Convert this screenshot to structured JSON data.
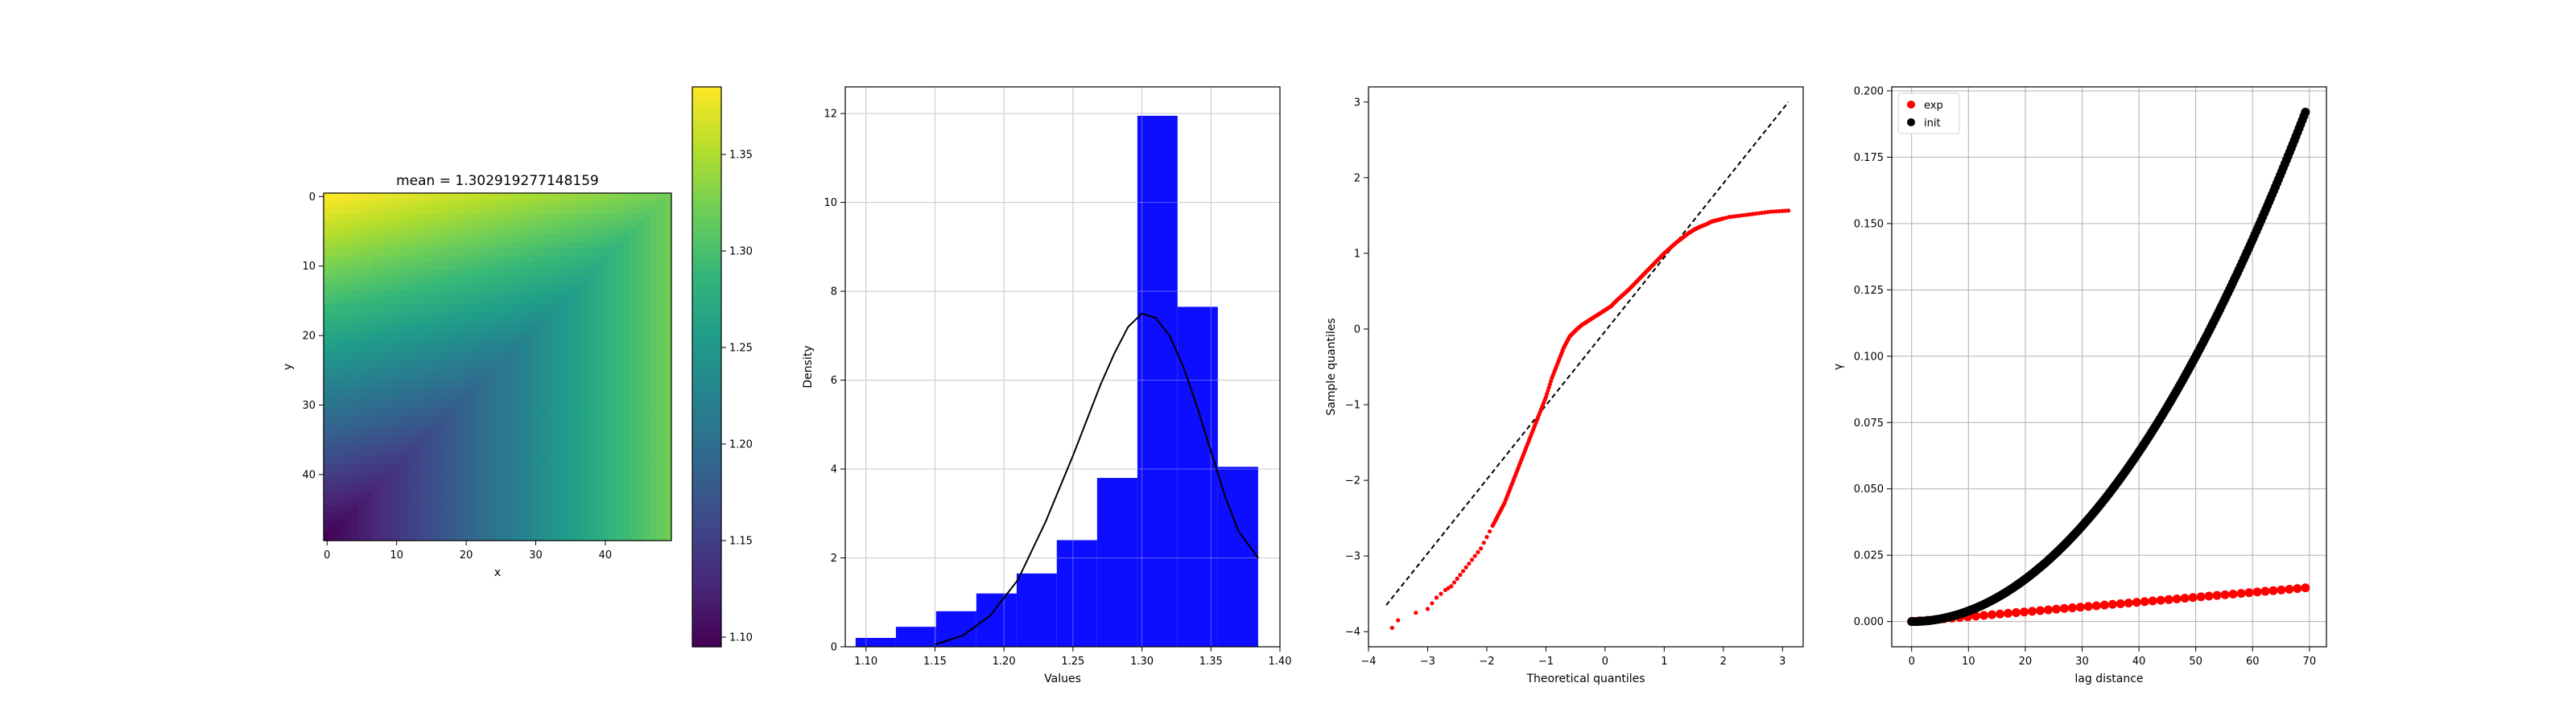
{
  "chart_data": [
    {
      "type": "heatmap",
      "title": "mean = 1.302919277148159",
      "xlabel": "x",
      "ylabel": "y",
      "grid_size": 50,
      "x_ticks": [
        0,
        10,
        20,
        30,
        40
      ],
      "y_ticks": [
        0,
        10,
        20,
        30,
        40
      ],
      "colormap": "viridis",
      "colorbar": {
        "range": [
          1.095,
          1.385
        ],
        "ticks": [
          1.1,
          1.15,
          1.2,
          1.25,
          1.3,
          1.35
        ],
        "tick_labels": [
          "1.10",
          "1.15",
          "1.20",
          "1.25",
          "1.30",
          "1.35"
        ]
      },
      "value_at_origin": 1.385,
      "value_at_bottom_left": 1.095,
      "value_at_bottom_right": 1.32,
      "value_at_top_right": 1.32
    },
    {
      "type": "bar",
      "subtype": "histogram",
      "xlabel": "Values",
      "ylabel": "Density",
      "bar_color": "#0000ff",
      "bin_edges": [
        1.0925,
        1.1217,
        1.1508,
        1.18,
        1.2092,
        1.2383,
        1.2675,
        1.2967,
        1.3258,
        1.355,
        1.3842
      ],
      "values": [
        0.2,
        0.45,
        0.8,
        1.2,
        1.65,
        2.4,
        3.8,
        11.95,
        7.65,
        4.05
      ],
      "curve": {
        "type": "line",
        "description": "normal density fit",
        "x": [
          1.15,
          1.17,
          1.19,
          1.21,
          1.23,
          1.25,
          1.27,
          1.28,
          1.29,
          1.3,
          1.31,
          1.32,
          1.33,
          1.34,
          1.35,
          1.36,
          1.37,
          1.3842
        ],
        "y": [
          0.05,
          0.25,
          0.7,
          1.5,
          2.8,
          4.3,
          5.9,
          6.6,
          7.2,
          7.5,
          7.4,
          7.0,
          6.3,
          5.4,
          4.4,
          3.4,
          2.6,
          2.0
        ]
      },
      "xlim": [
        1.085,
        1.4
      ],
      "ylim": [
        0,
        12.6
      ],
      "x_ticks": [
        1.1,
        1.15,
        1.2,
        1.25,
        1.3,
        1.35,
        1.4
      ],
      "x_tick_labels": [
        "1.10",
        "1.15",
        "1.20",
        "1.25",
        "1.30",
        "1.35",
        "1.40"
      ],
      "y_ticks": [
        0,
        2,
        4,
        6,
        8,
        10,
        12
      ],
      "grid": true
    },
    {
      "type": "scatter",
      "subtype": "qq-plot",
      "xlabel": "Theoretical quantiles",
      "ylabel": "Sample quantiles",
      "point_color": "#ff0000",
      "sample_points": {
        "x": [
          -3.6,
          -3.5,
          -3.2,
          -3.0,
          -2.85,
          -2.7,
          -2.6,
          -2.5,
          -2.4,
          -2.3,
          -2.2,
          -2.1,
          -2.0,
          -1.9,
          -1.8,
          -1.7,
          -1.6,
          -1.5,
          -1.4,
          -1.3,
          -1.2,
          -1.1,
          -1.0,
          -0.9,
          -0.8,
          -0.7,
          -0.6,
          -0.5,
          -0.4,
          -0.3,
          -0.2,
          -0.1,
          0.0,
          0.1,
          0.2,
          0.3,
          0.4,
          0.5,
          0.6,
          0.7,
          0.8,
          0.9,
          1.0,
          1.1,
          1.2,
          1.3,
          1.4,
          1.5,
          1.6,
          1.7,
          1.8,
          1.9,
          2.0,
          2.1,
          2.2,
          2.3,
          2.4,
          2.5,
          2.6,
          2.7,
          2.8,
          2.9,
          3.0,
          3.1
        ],
        "y": [
          -3.95,
          -3.85,
          -3.75,
          -3.7,
          -3.55,
          -3.45,
          -3.4,
          -3.3,
          -3.2,
          -3.1,
          -3.0,
          -2.9,
          -2.75,
          -2.6,
          -2.45,
          -2.3,
          -2.1,
          -1.9,
          -1.7,
          -1.5,
          -1.3,
          -1.1,
          -0.9,
          -0.65,
          -0.45,
          -0.25,
          -0.1,
          -0.02,
          0.05,
          0.1,
          0.15,
          0.2,
          0.25,
          0.3,
          0.38,
          0.45,
          0.52,
          0.6,
          0.68,
          0.76,
          0.84,
          0.92,
          1.0,
          1.07,
          1.14,
          1.2,
          1.26,
          1.31,
          1.35,
          1.38,
          1.42,
          1.44,
          1.46,
          1.48,
          1.49,
          1.5,
          1.51,
          1.52,
          1.53,
          1.54,
          1.55,
          1.555,
          1.56,
          1.565
        ]
      },
      "reference_line": {
        "x": [
          -3.7,
          3.1
        ],
        "y": [
          -3.65,
          3.0
        ],
        "style": "dashed",
        "color": "#000000"
      },
      "xlim": [
        -4.0,
        3.35
      ],
      "ylim": [
        -4.2,
        3.2
      ],
      "x_ticks": [
        -4,
        -3,
        -2,
        -1,
        0,
        1,
        2,
        3
      ],
      "x_tick_labels": [
        "−4",
        "−3",
        "−2",
        "−1",
        "0",
        "1",
        "2",
        "3"
      ],
      "y_ticks": [
        -4,
        -3,
        -2,
        -1,
        0,
        1,
        2,
        3
      ],
      "y_tick_labels": [
        "−4",
        "−3",
        "−2",
        "−1",
        "0",
        "1",
        "2",
        "3"
      ],
      "grid": false
    },
    {
      "type": "scatter",
      "xlabel": "lag distance",
      "ylabel": "γ",
      "legend_position": "top-left",
      "series": [
        {
          "name": "exp",
          "color": "#ff0000",
          "x_start": 0,
          "x_end": 69.3,
          "count": 50,
          "y_start": 0.0,
          "y_end": 0.0127,
          "shape": "linear"
        },
        {
          "name": "init",
          "color": "#000000",
          "x_start": 0,
          "x_end": 69.3,
          "count": 250,
          "y_start": 0.0,
          "y_end": 0.192,
          "shape": "power",
          "exponent": 2.0
        }
      ],
      "xlim": [
        -3.5,
        73.0
      ],
      "ylim": [
        -0.0095,
        0.2015
      ],
      "x_ticks": [
        0,
        10,
        20,
        30,
        40,
        50,
        60,
        70
      ],
      "y_ticks": [
        0.0,
        0.025,
        0.05,
        0.075,
        0.1,
        0.125,
        0.15,
        0.175,
        0.2
      ],
      "y_tick_labels": [
        "0.000",
        "0.025",
        "0.050",
        "0.075",
        "0.100",
        "0.125",
        "0.150",
        "0.175",
        "0.200"
      ],
      "grid": true
    }
  ]
}
